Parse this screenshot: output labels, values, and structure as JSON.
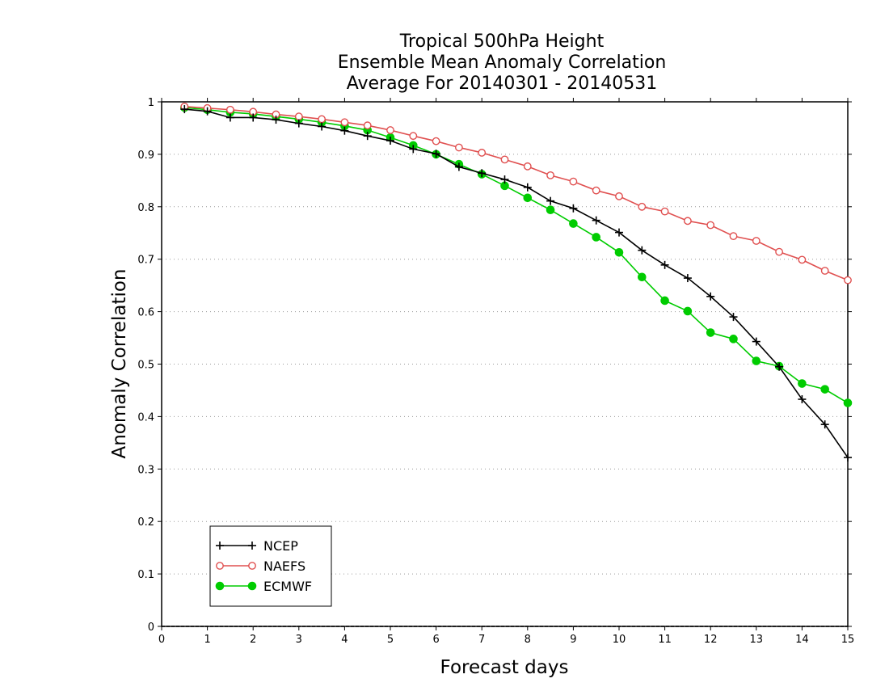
{
  "chart_data": {
    "type": "line",
    "title": [
      "Tropical 500hPa Height",
      "Ensemble Mean Anomaly Correlation",
      "Average For 20140301 - 20140531"
    ],
    "xlabel": "Forecast days",
    "ylabel": "Anomaly Correlation",
    "xlim": [
      0,
      15
    ],
    "ylim": [
      0,
      1
    ],
    "xticks": [
      "0",
      "1",
      "2",
      "3",
      "4",
      "5",
      "6",
      "7",
      "8",
      "9",
      "10",
      "11",
      "12",
      "13",
      "14",
      "15"
    ],
    "yticks": [
      "0",
      "0.1",
      "0.2",
      "0.3",
      "0.4",
      "0.5",
      "0.6",
      "0.7",
      "0.8",
      "0.9",
      "1"
    ],
    "grid": "horizontal-dotted",
    "legend_position": "bottom-left",
    "x": [
      0.5,
      1,
      1.5,
      2,
      2.5,
      3,
      3.5,
      4,
      4.5,
      5,
      5.5,
      6,
      6.5,
      7,
      7.5,
      8,
      8.5,
      9,
      9.5,
      10,
      10.5,
      11,
      11.5,
      12,
      12.5,
      13,
      13.5,
      14,
      14.5,
      15
    ],
    "series": [
      {
        "name": "NCEP",
        "color": "#000000",
        "marker": "plus",
        "values": [
          0.986,
          0.982,
          0.97,
          0.97,
          0.966,
          0.959,
          0.953,
          0.945,
          0.935,
          0.926,
          0.91,
          0.901,
          0.876,
          0.864,
          0.852,
          0.837,
          0.811,
          0.797,
          0.774,
          0.751,
          0.717,
          0.689,
          0.664,
          0.629,
          0.59,
          0.543,
          0.495,
          0.433,
          0.385,
          0.322
        ]
      },
      {
        "name": "NAEFS",
        "color": "#e05050",
        "marker": "open-circle",
        "values": [
          0.991,
          0.988,
          0.985,
          0.981,
          0.976,
          0.972,
          0.967,
          0.961,
          0.955,
          0.946,
          0.935,
          0.925,
          0.913,
          0.903,
          0.89,
          0.877,
          0.86,
          0.848,
          0.831,
          0.82,
          0.8,
          0.791,
          0.773,
          0.765,
          0.744,
          0.735,
          0.714,
          0.699,
          0.678,
          0.66
        ]
      },
      {
        "name": "ECMWF",
        "color": "#00cc00",
        "marker": "filled-circle",
        "values": [
          0.989,
          0.985,
          0.98,
          0.977,
          0.972,
          0.967,
          0.961,
          0.954,
          0.946,
          0.932,
          0.917,
          0.9,
          0.881,
          0.862,
          0.84,
          0.817,
          0.794,
          0.768,
          0.742,
          0.713,
          0.666,
          0.621,
          0.601,
          0.56,
          0.548,
          0.506,
          0.496,
          0.463,
          0.452,
          0.426
        ]
      }
    ]
  }
}
